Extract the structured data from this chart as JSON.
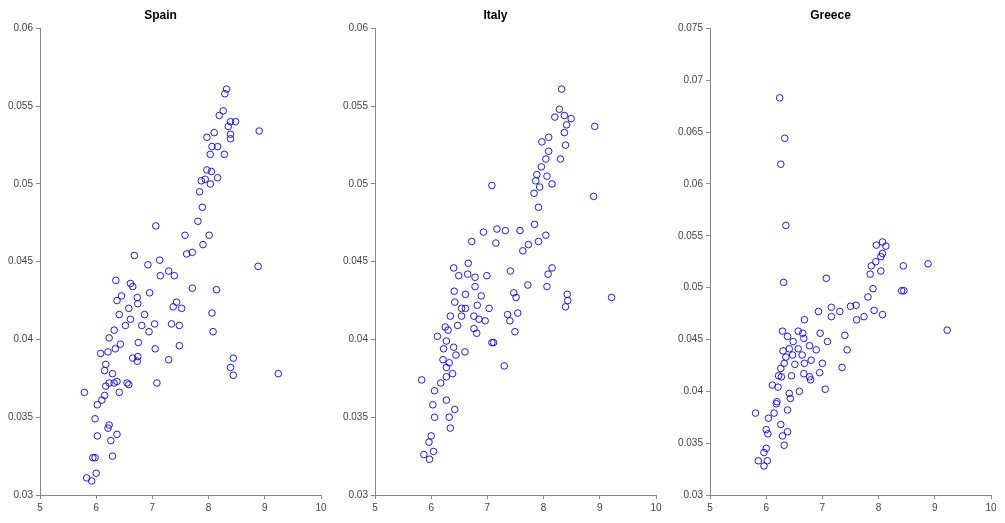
{
  "chart_data": [
    {
      "type": "scatter",
      "title": "Spain",
      "marker": "circle",
      "grid": false,
      "legend": false,
      "xlim": [
        5,
        10
      ],
      "xticks": [
        5,
        6,
        7,
        8,
        9,
        10
      ],
      "ylim": [
        0.03,
        0.06
      ],
      "yticks": [
        0.03,
        0.035,
        0.04,
        0.045,
        0.05,
        0.055,
        0.06
      ],
      "series": [
        {
          "color": "#0000ff",
          "x": [
            8.32,
            8.29,
            8.26,
            8.19,
            8.39,
            8.48,
            8.35,
            8.39,
            8.39,
            8.9,
            7.97,
            8.1,
            8.06,
            8.16,
            8.03,
            8.28,
            7.97,
            8.05,
            7.87,
            7.94,
            8.03,
            8.16,
            7.84,
            7.89,
            7.81,
            7.58,
            8.01,
            7.9,
            7.71,
            7.61,
            7.06,
            7.13,
            6.92,
            6.68,
            7.29,
            7.39,
            7.14,
            8.88,
            7.71,
            8.14,
            6.95,
            6.35,
            6.61,
            6.65,
            6.37,
            6.45,
            6.73,
            6.58,
            6.74,
            6.86,
            7.43,
            7.37,
            7.52,
            6.41,
            6.61,
            6.52,
            7.04,
            6.94,
            6.81,
            7.34,
            7.48,
            8.06,
            8.08,
            6.32,
            6.23,
            6.43,
            6.34,
            6.75,
            7.05,
            6.08,
            6.21,
            6.65,
            6.74,
            6.73,
            7.48,
            7.29,
            6.17,
            6.15,
            6.29,
            6.32,
            6.23,
            6.37,
            6.55,
            6.17,
            6.41,
            6.58,
            7.08,
            8.44,
            8.39,
            8.44,
            9.24,
            5.79,
            6.15,
            6.1,
            6.02,
            5.98,
            6.02,
            6.23,
            6.21,
            6.37,
            6.26,
            6.29,
            5.94,
            5.98,
            6.0,
            5.83,
            5.92
          ],
          "values": [
            0.0561,
            0.0558,
            0.0547,
            0.0544,
            0.054,
            0.054,
            0.0537,
            0.0532,
            0.0529,
            0.0534,
            0.053,
            0.0533,
            0.0524,
            0.0524,
            0.0519,
            0.0519,
            0.0509,
            0.0508,
            0.0502,
            0.0503,
            0.05,
            0.0504,
            0.0495,
            0.0485,
            0.0476,
            0.0467,
            0.0467,
            0.0461,
            0.0456,
            0.0455,
            0.0473,
            0.0451,
            0.0448,
            0.0454,
            0.0444,
            0.0441,
            0.0441,
            0.0447,
            0.0433,
            0.0432,
            0.043,
            0.0438,
            0.0436,
            0.0434,
            0.0425,
            0.0428,
            0.0427,
            0.042,
            0.0423,
            0.0416,
            0.0424,
            0.0421,
            0.042,
            0.0416,
            0.0413,
            0.0409,
            0.041,
            0.0405,
            0.0409,
            0.041,
            0.0409,
            0.0417,
            0.0405,
            0.0406,
            0.0401,
            0.0397,
            0.0394,
            0.0398,
            0.0394,
            0.0391,
            0.0392,
            0.0388,
            0.0389,
            0.0386,
            0.0396,
            0.0387,
            0.0384,
            0.038,
            0.0378,
            0.0372,
            0.0372,
            0.0373,
            0.0372,
            0.037,
            0.0366,
            0.0371,
            0.0372,
            0.0388,
            0.0382,
            0.0377,
            0.0378,
            0.0366,
            0.0364,
            0.0361,
            0.0358,
            0.0349,
            0.0338,
            0.0345,
            0.0343,
            0.0339,
            0.0335,
            0.0325,
            0.0324,
            0.0324,
            0.0314,
            0.0311,
            0.0309
          ]
        }
      ]
    },
    {
      "type": "scatter",
      "title": "Italy",
      "marker": "circle",
      "grid": false,
      "legend": false,
      "xlim": [
        5,
        10
      ],
      "xticks": [
        5,
        6,
        7,
        8,
        9,
        10
      ],
      "ylim": [
        0.03,
        0.06
      ],
      "yticks": [
        0.03,
        0.035,
        0.04,
        0.045,
        0.05,
        0.055,
        0.06
      ],
      "series": [
        {
          "color": "#0000ff",
          "x": [
            8.32,
            8.28,
            8.2,
            8.37,
            8.49,
            8.41,
            8.37,
            8.91,
            8.09,
            7.97,
            8.39,
            8.09,
            8.04,
            8.3,
            7.96,
            7.88,
            8.06,
            7.86,
            7.93,
            8.15,
            7.83,
            8.89,
            7.08,
            7.91,
            7.84,
            8.04,
            7.91,
            7.73,
            7.63,
            7.58,
            7.32,
            7.17,
            6.93,
            7.15,
            6.72,
            6.66,
            6.4,
            6.49,
            6.65,
            6.78,
            6.99,
            7.41,
            8.15,
            8.08,
            7.72,
            8.06,
            6.41,
            6.61,
            6.78,
            6.89,
            7.47,
            7.51,
            8.42,
            8.43,
            8.39,
            9.21,
            6.42,
            6.54,
            6.61,
            6.82,
            7.03,
            6.34,
            6.54,
            6.76,
            6.85,
            6.96,
            7.36,
            7.54,
            7.4,
            6.47,
            6.25,
            6.3,
            6.76,
            6.81,
            7.49,
            6.11,
            6.27,
            6.22,
            6.4,
            7.08,
            7.11,
            6.6,
            6.44,
            6.21,
            6.32,
            6.27,
            7.3,
            6.38,
            6.27,
            6.17,
            5.83,
            6.06,
            6.27,
            6.03,
            6.42,
            6.06,
            6.32,
            6.34,
            6.0,
            5.96,
            6.04,
            5.87,
            5.97
          ],
          "values": [
            0.0561,
            0.0548,
            0.0543,
            0.0544,
            0.0542,
            0.0538,
            0.0533,
            0.0537,
            0.053,
            0.0527,
            0.0525,
            0.0521,
            0.0516,
            0.0516,
            0.0511,
            0.0506,
            0.0505,
            0.0502,
            0.0498,
            0.05,
            0.0494,
            0.0492,
            0.0499,
            0.0485,
            0.0474,
            0.0467,
            0.0463,
            0.0461,
            0.0457,
            0.047,
            0.047,
            0.0471,
            0.0469,
            0.0462,
            0.0463,
            0.0449,
            0.0446,
            0.0441,
            0.0442,
            0.044,
            0.0441,
            0.0444,
            0.0446,
            0.0442,
            0.0435,
            0.0434,
            0.0431,
            0.0429,
            0.0434,
            0.0428,
            0.043,
            0.0427,
            0.0429,
            0.0425,
            0.0421,
            0.0427,
            0.0424,
            0.042,
            0.042,
            0.0422,
            0.042,
            0.0415,
            0.0415,
            0.0415,
            0.0413,
            0.0412,
            0.0416,
            0.0417,
            0.0412,
            0.0409,
            0.0408,
            0.0406,
            0.0407,
            0.0404,
            0.0405,
            0.0402,
            0.0399,
            0.0394,
            0.0395,
            0.0398,
            0.0398,
            0.0392,
            0.039,
            0.0387,
            0.0385,
            0.0382,
            0.0383,
            0.0378,
            0.0376,
            0.0372,
            0.0374,
            0.0367,
            0.0361,
            0.0358,
            0.0355,
            0.035,
            0.035,
            0.0343,
            0.0338,
            0.0334,
            0.0328,
            0.0326,
            0.0323
          ]
        }
      ]
    },
    {
      "type": "scatter",
      "title": "Greece",
      "marker": "circle",
      "grid": false,
      "legend": false,
      "xlim": [
        5,
        10
      ],
      "xticks": [
        5,
        6,
        7,
        8,
        9,
        10
      ],
      "ylim": [
        0.03,
        0.075
      ],
      "yticks": [
        0.03,
        0.035,
        0.04,
        0.045,
        0.05,
        0.055,
        0.06,
        0.065,
        0.07,
        0.075
      ],
      "series": [
        {
          "color": "#0000ff",
          "x": [
            6.24,
            6.33,
            6.26,
            6.35,
            6.31,
            7.07,
            8.07,
            8.13,
            7.96,
            8.07,
            8.04,
            7.95,
            7.87,
            7.85,
            8.04,
            8.44,
            8.88,
            8.41,
            8.45,
            7.9,
            7.81,
            7.92,
            8.07,
            7.74,
            7.61,
            7.5,
            7.6,
            7.31,
            7.16,
            7.16,
            6.93,
            6.68,
            9.22,
            7.4,
            7.44,
            7.35,
            6.96,
            7.09,
            6.29,
            6.38,
            6.48,
            6.57,
            6.65,
            6.67,
            6.3,
            6.41,
            6.57,
            6.77,
            6.89,
            6.35,
            6.47,
            6.64,
            6.51,
            6.68,
            6.8,
            7.0,
            6.32,
            6.26,
            6.22,
            6.27,
            6.45,
            6.67,
            6.77,
            6.79,
            6.95,
            6.11,
            6.21,
            7.05,
            6.59,
            6.41,
            6.43,
            6.19,
            6.18,
            6.14,
            5.81,
            6.04,
            6.38,
            6.26,
            6.38,
            6.29,
            6.03,
            6.0,
            6.32,
            6.0,
            5.96,
            5.86,
            6.02,
            5.96
          ],
          "values": [
            0.0683,
            0.0644,
            0.0619,
            0.056,
            0.0505,
            0.0509,
            0.0544,
            0.054,
            0.0541,
            0.0533,
            0.053,
            0.0525,
            0.0521,
            0.0513,
            0.0516,
            0.0521,
            0.0523,
            0.0497,
            0.0497,
            0.0499,
            0.0491,
            0.0478,
            0.0474,
            0.0472,
            0.0469,
            0.0482,
            0.0483,
            0.0477,
            0.0481,
            0.0472,
            0.0477,
            0.0469,
            0.0459,
            0.0454,
            0.044,
            0.0423,
            0.0456,
            0.0448,
            0.0458,
            0.0453,
            0.0448,
            0.0458,
            0.0456,
            0.0451,
            0.0439,
            0.0441,
            0.0441,
            0.0444,
            0.044,
            0.0433,
            0.0435,
            0.0435,
            0.0426,
            0.0427,
            0.043,
            0.0427,
            0.0427,
            0.0422,
            0.0415,
            0.0414,
            0.0415,
            0.0417,
            0.0414,
            0.0411,
            0.0418,
            0.0406,
            0.0404,
            0.0402,
            0.04,
            0.0398,
            0.0393,
            0.039,
            0.0388,
            0.0379,
            0.0379,
            0.0374,
            0.0382,
            0.0368,
            0.0361,
            0.0357,
            0.0359,
            0.0363,
            0.0348,
            0.0345,
            0.0341,
            0.0333,
            0.0333,
            0.0328
          ]
        }
      ]
    }
  ]
}
